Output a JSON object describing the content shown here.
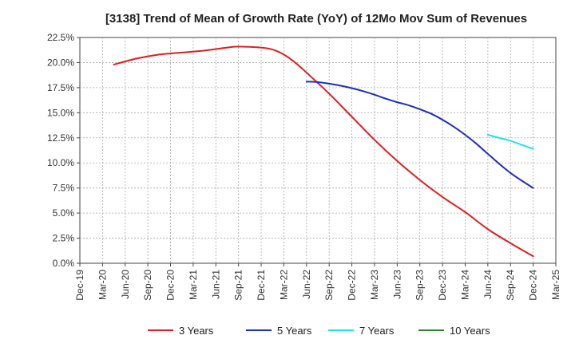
{
  "chart_data": {
    "type": "line",
    "title": "[3138]  Trend of Mean of Growth Rate (YoY) of 12Mo Mov Sum of Revenues",
    "xlabel": "",
    "ylabel": "",
    "ylim": [
      0,
      22.5
    ],
    "y_ticks": [
      0,
      2.5,
      5,
      7.5,
      10,
      12.5,
      15,
      17.5,
      20,
      22.5
    ],
    "y_tick_labels": [
      "0.0%",
      "2.5%",
      "5.0%",
      "7.5%",
      "10.0%",
      "12.5%",
      "15.0%",
      "17.5%",
      "20.0%",
      "22.5%"
    ],
    "x_tick_labels": [
      "Dec-19",
      "Mar-20",
      "Jun-20",
      "Sep-20",
      "Dec-20",
      "Mar-21",
      "Jun-21",
      "Sep-21",
      "Dec-21",
      "Mar-22",
      "Jun-22",
      "Sep-22",
      "Dec-22",
      "Mar-23",
      "Jun-23",
      "Sep-23",
      "Dec-23",
      "Mar-24",
      "Jun-24",
      "Sep-24",
      "Dec-24",
      "Mar-25"
    ],
    "grid": true,
    "legend_position": "bottom",
    "series": [
      {
        "name": "3 Years",
        "color": "#dd1f1f",
        "points": [
          [
            1.5,
            19.8
          ],
          [
            2.5,
            20.4
          ],
          [
            3.5,
            20.8
          ],
          [
            4.5,
            21.0
          ],
          [
            5.5,
            21.2
          ],
          [
            6.5,
            21.5
          ],
          [
            7,
            21.6
          ],
          [
            8,
            21.5
          ],
          [
            8.5,
            21.3
          ],
          [
            9,
            20.8
          ],
          [
            9.5,
            20.0
          ],
          [
            10,
            19.0
          ],
          [
            11,
            16.9
          ],
          [
            12,
            14.6
          ],
          [
            13,
            12.3
          ],
          [
            14,
            10.2
          ],
          [
            15,
            8.3
          ],
          [
            16,
            6.6
          ],
          [
            17,
            5.1
          ],
          [
            18,
            3.4
          ],
          [
            19,
            2.0
          ],
          [
            20,
            0.7
          ]
        ]
      },
      {
        "name": "5 Years",
        "color": "#1c2dc0",
        "points": [
          [
            10,
            18.1
          ],
          [
            10.5,
            18.05
          ],
          [
            11,
            17.9
          ],
          [
            11.5,
            17.7
          ],
          [
            12,
            17.45
          ],
          [
            12.5,
            17.15
          ],
          [
            13,
            16.8
          ],
          [
            13.5,
            16.4
          ],
          [
            14,
            16.05
          ],
          [
            14.5,
            15.75
          ],
          [
            15,
            15.35
          ],
          [
            15.5,
            14.9
          ],
          [
            16,
            14.3
          ],
          [
            16.5,
            13.6
          ],
          [
            17,
            12.8
          ],
          [
            17.5,
            11.9
          ],
          [
            18,
            10.9
          ],
          [
            19,
            9.0
          ],
          [
            20,
            7.5
          ]
        ]
      },
      {
        "name": "7 Years",
        "color": "#22e0ee",
        "points": [
          [
            18,
            12.8
          ],
          [
            18.5,
            12.5
          ],
          [
            19,
            12.2
          ],
          [
            19.5,
            11.8
          ],
          [
            20,
            11.4
          ]
        ]
      },
      {
        "name": "10 Years",
        "color": "#2a8a2a",
        "points": []
      }
    ]
  }
}
